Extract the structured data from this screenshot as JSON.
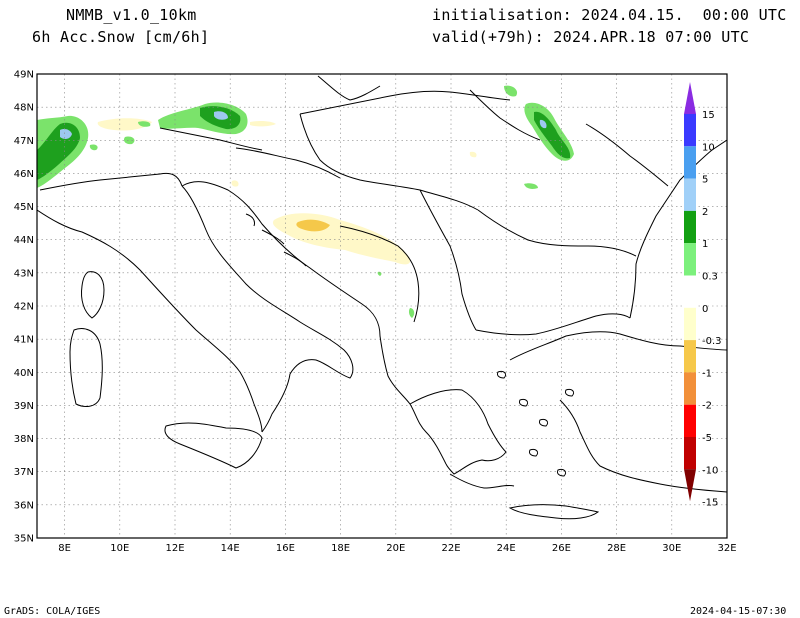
{
  "header": {
    "model": "NMMB_v1.0_10km",
    "field": "6h Acc.Snow [cm/6h]",
    "init": "initialisation: 2024.04.15.  00:00 UTC",
    "valid": "valid(+79h): 2024.APR.18 07:00 UTC"
  },
  "footer": {
    "credit": "GrADS: COLA/IGES",
    "timestamp": "2024-04-15-07:30"
  },
  "map": {
    "lon_range": [
      7,
      32
    ],
    "lat_range": [
      35,
      49
    ],
    "lon_labels": [
      "8E",
      "10E",
      "12E",
      "14E",
      "16E",
      "18E",
      "20E",
      "22E",
      "24E",
      "26E",
      "28E",
      "30E",
      "32E"
    ],
    "lat_labels": [
      "35N",
      "36N",
      "37N",
      "38N",
      "39N",
      "40N",
      "41N",
      "42N",
      "43N",
      "44N",
      "45N",
      "46N",
      "47N",
      "48N",
      "49N"
    ],
    "grid": true,
    "colors": {
      "coast": "#000000",
      "grid": "#888888",
      "snow_light": "#7be36b",
      "snow_mid": "#1ea01e",
      "snow_heavy": "#0b6e0b",
      "snow_blue": "#9dc8f0",
      "neg_light": "#fff8c8",
      "neg_mid": "#f5c84a"
    }
  },
  "colorbar": {
    "labels": [
      "15",
      "10",
      "5",
      "2",
      "1",
      "0.3",
      "0",
      "-0.3",
      "-1",
      "-2",
      "-5",
      "-10",
      "-15"
    ],
    "colors": [
      "#8a2be2",
      "#3a3aff",
      "#4a9ff0",
      "#a0d0f8",
      "#12a012",
      "#7cf07c",
      "#ffffff",
      "#ffffcc",
      "#f6c84a",
      "#f2903a",
      "#ff0000",
      "#c00000",
      "#800000"
    ]
  },
  "snow_areas": [
    {
      "name": "western-alps",
      "lon": 7.9,
      "lat": 46.7,
      "level": "heavy"
    },
    {
      "name": "eastern-alps",
      "lon": 13.8,
      "lat": 47.7,
      "level": "heavy"
    },
    {
      "name": "carpathians",
      "lon": 25.5,
      "lat": 47.3,
      "level": "heavy"
    },
    {
      "name": "dinaric",
      "lon": 17.2,
      "lat": 44.2,
      "level": "negative"
    }
  ]
}
